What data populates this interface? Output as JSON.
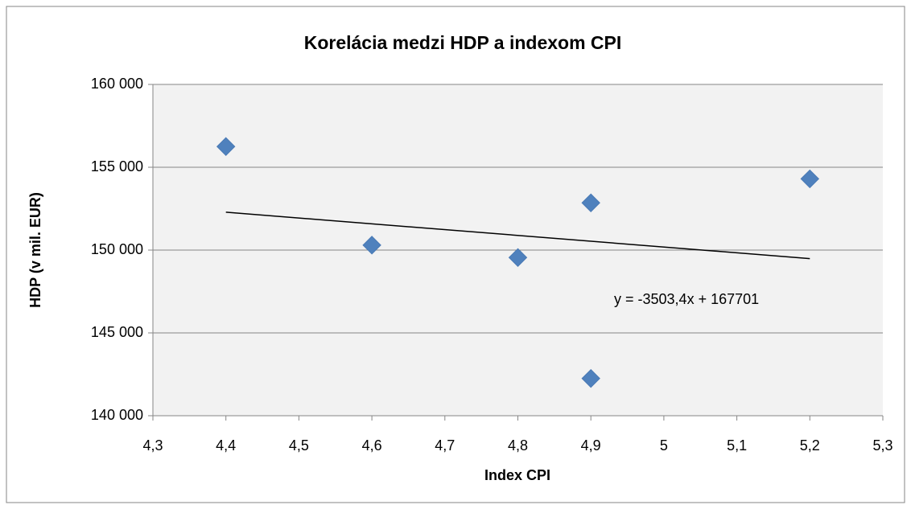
{
  "chart_data": {
    "type": "scatter",
    "title": "Korelácia medzi HDP a indexom CPI",
    "x_label": "Index CPI",
    "y_label": "HDP (v mil. EUR)",
    "series": [
      {
        "name": "HDP",
        "color": "#4f81bd",
        "x": [
          4.4,
          4.6,
          4.8,
          4.9,
          4.9,
          5.2
        ],
        "values": [
          156250,
          150300,
          149550,
          152850,
          142250,
          154300
        ]
      }
    ],
    "trendline": {
      "label": "y = -3503,4x + 167701",
      "slope": -3503.4,
      "intercept": 167701,
      "color": "#000000"
    },
    "xlim": [
      4.3,
      5.3
    ],
    "xticks": [
      {
        "value": 4.3,
        "label": "4,3"
      },
      {
        "value": 4.4,
        "label": "4,4"
      },
      {
        "value": 4.5,
        "label": "4,5"
      },
      {
        "value": 4.6,
        "label": "4,6"
      },
      {
        "value": 4.7,
        "label": "4,7"
      },
      {
        "value": 4.8,
        "label": "4,8"
      },
      {
        "value": 4.9,
        "label": "4,9"
      },
      5,
      {
        "value": 5.1,
        "label": "5,1"
      },
      {
        "value": 5.2,
        "label": "5,2"
      },
      {
        "value": 5.3,
        "label": "5,3"
      }
    ],
    "ylim": [
      140000,
      160000
    ],
    "yticks": [
      {
        "value": 140000,
        "label": "140 000"
      },
      {
        "value": 145000,
        "label": "145 000"
      },
      {
        "value": 150000,
        "label": "150 000"
      },
      {
        "value": 155000,
        "label": "155 000"
      },
      {
        "value": 160000,
        "label": "160 000"
      }
    ],
    "grid": true
  }
}
